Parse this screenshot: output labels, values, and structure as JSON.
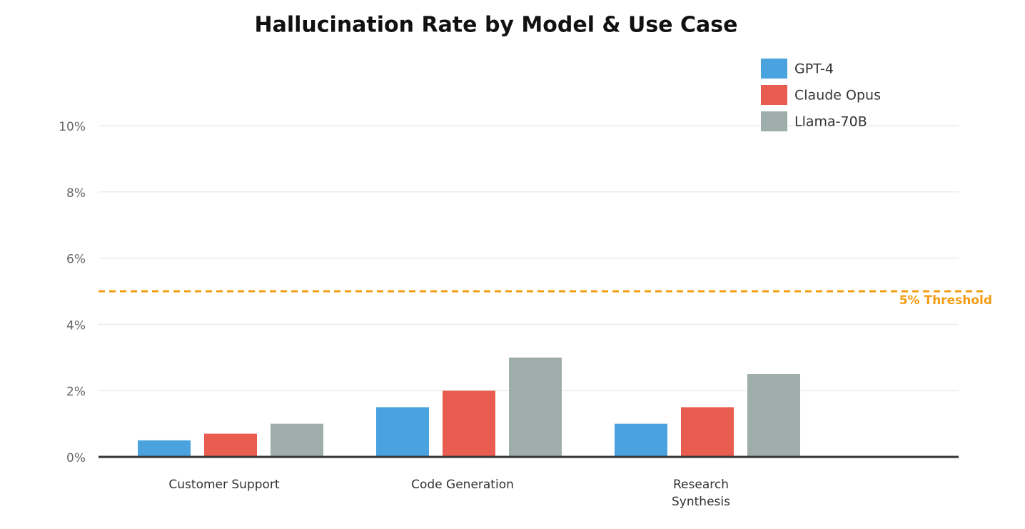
{
  "chart_data": {
    "type": "bar",
    "title": "Hallucination Rate by Model & Use Case",
    "categories": [
      "Customer Support",
      "Code Generation",
      "Research Synthesis"
    ],
    "series": [
      {
        "name": "GPT-4",
        "color": "#4aa3df",
        "values": [
          0.5,
          1.5,
          1.0
        ]
      },
      {
        "name": "Claude Opus",
        "color": "#e85d4f",
        "values": [
          0.7,
          2.0,
          1.5
        ]
      },
      {
        "name": "Llama-70B",
        "color": "#9fadab",
        "values": [
          1.0,
          3.0,
          2.5
        ]
      }
    ],
    "ylim": [
      0,
      10
    ],
    "yticks": [
      {
        "value": 0,
        "label": "0%"
      },
      {
        "value": 2,
        "label": "2%"
      },
      {
        "value": 4,
        "label": "4%"
      },
      {
        "value": 6,
        "label": "6%"
      },
      {
        "value": 8,
        "label": "8%"
      },
      {
        "value": 10,
        "label": "10%"
      }
    ],
    "grid": true,
    "legend": "top-right",
    "threshold": {
      "value": 5,
      "label": "5% Threshold",
      "color": "#f39c12"
    }
  }
}
